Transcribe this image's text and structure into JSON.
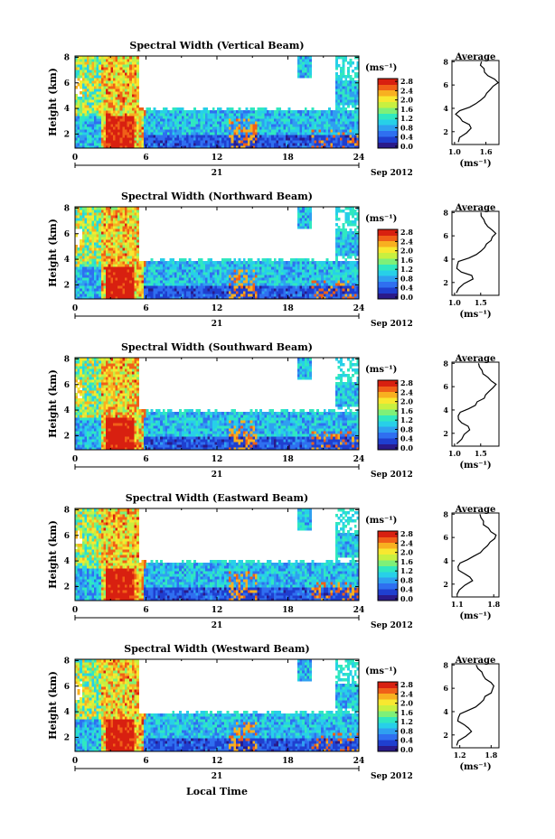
{
  "footer_label": "Local Time",
  "palette": [
    "#2a1a8a",
    "#1f3fcf",
    "#2f6ff0",
    "#2fa0f0",
    "#27d0e8",
    "#30e8c0",
    "#7ef078",
    "#c8f040",
    "#f8e830",
    "#f8b020",
    "#f06018",
    "#d82010"
  ],
  "chart_data": [
    {
      "type": "heatmap",
      "title": "Spectral Width (Vertical Beam)",
      "ylabel": "Height (km)",
      "yticks": [
        "2",
        "4",
        "6",
        "8"
      ],
      "ylim": [
        0.9,
        8.1
      ],
      "xticks": [
        "0",
        "6",
        "12",
        "18",
        "24"
      ],
      "xticks_minor": [
        "3",
        "9",
        "15",
        "21"
      ],
      "xlim": [
        0,
        24
      ],
      "date_day": "21",
      "date_month": "Sep 2012",
      "colorbar": {
        "unit": "(ms⁻¹)",
        "ticks": [
          "2.8",
          "2.4",
          "2.0",
          "1.6",
          "1.2",
          "0.8",
          "0.4",
          "0.0"
        ],
        "range": [
          0.0,
          3.0
        ]
      },
      "profile": {
        "title": "Average",
        "xlabel": "(ms⁻¹)",
        "xticks": [
          "1.0",
          "1.6"
        ],
        "xlim": [
          0.95,
          1.85
        ],
        "yticks": [
          "2",
          "4",
          "6",
          "8"
        ],
        "height": [
          1.1,
          1.5,
          1.9,
          2.3,
          2.6,
          2.9,
          3.2,
          3.5,
          3.8,
          4.1,
          4.4,
          4.7,
          5.0,
          5.3,
          5.6,
          5.9,
          6.2,
          6.5,
          6.8,
          7.1,
          7.4,
          7.7,
          8.0
        ],
        "width": [
          1.05,
          1.12,
          1.22,
          1.32,
          1.28,
          1.16,
          1.08,
          1.05,
          1.12,
          1.28,
          1.42,
          1.5,
          1.56,
          1.62,
          1.7,
          1.76,
          1.82,
          1.74,
          1.66,
          1.6,
          1.55,
          1.52,
          1.5
        ]
      }
    },
    {
      "type": "heatmap",
      "title": "Spectral Width (Northward Beam)",
      "ylabel": "Height (km)",
      "yticks": [
        "2",
        "4",
        "6",
        "8"
      ],
      "ylim": [
        0.9,
        8.1
      ],
      "xticks": [
        "0",
        "6",
        "12",
        "18",
        "24"
      ],
      "xticks_minor": [
        "3",
        "9",
        "15",
        "21"
      ],
      "xlim": [
        0,
        24
      ],
      "date_day": "21",
      "date_month": "Sep 2012",
      "colorbar": {
        "unit": "(ms⁻¹)",
        "ticks": [
          "2.8",
          "2.4",
          "2.0",
          "1.6",
          "1.2",
          "0.8",
          "0.4",
          "0.0"
        ],
        "range": [
          0.0,
          3.0
        ]
      },
      "profile": {
        "title": "Average",
        "xlabel": "(ms⁻¹)",
        "xticks": [
          "1.0",
          "1.5"
        ],
        "xlim": [
          0.95,
          1.85
        ],
        "yticks": [
          "2",
          "4",
          "6",
          "8"
        ],
        "height": [
          1.1,
          1.5,
          1.9,
          2.3,
          2.6,
          2.9,
          3.2,
          3.5,
          3.8,
          4.1,
          4.4,
          4.7,
          5.0,
          5.3,
          5.6,
          5.9,
          6.2,
          6.5,
          6.8,
          7.1,
          7.4,
          7.7,
          8.0
        ],
        "width": [
          1.04,
          1.1,
          1.2,
          1.34,
          1.3,
          1.15,
          1.07,
          1.04,
          1.1,
          1.26,
          1.4,
          1.48,
          1.55,
          1.62,
          1.68,
          1.74,
          1.8,
          1.72,
          1.64,
          1.58,
          1.54,
          1.5,
          1.48
        ]
      }
    },
    {
      "type": "heatmap",
      "title": "Spectral Width (Southward Beam)",
      "ylabel": "Height (km)",
      "yticks": [
        "2",
        "4",
        "6",
        "8"
      ],
      "ylim": [
        0.9,
        8.1
      ],
      "xticks": [
        "0",
        "6",
        "12",
        "18",
        "24"
      ],
      "xticks_minor": [
        "3",
        "9",
        "15",
        "21"
      ],
      "xlim": [
        0,
        24
      ],
      "date_day": "21",
      "date_month": "Sep 2012",
      "colorbar": {
        "unit": "(ms⁻¹)",
        "ticks": [
          "2.8",
          "2.4",
          "2.0",
          "1.6",
          "1.2",
          "0.8",
          "0.4",
          "0.0"
        ],
        "range": [
          0.0,
          3.0
        ]
      },
      "profile": {
        "title": "Average",
        "xlabel": "(ms⁻¹)",
        "xticks": [
          "1.0",
          "1.5"
        ],
        "xlim": [
          0.95,
          1.85
        ],
        "yticks": [
          "2",
          "4",
          "6",
          "8"
        ],
        "height": [
          1.1,
          1.5,
          1.9,
          2.3,
          2.6,
          2.9,
          3.2,
          3.5,
          3.8,
          4.1,
          4.4,
          4.7,
          5.0,
          5.3,
          5.6,
          5.9,
          6.2,
          6.5,
          6.8,
          7.1,
          7.4,
          7.7,
          8.0
        ],
        "width": [
          1.05,
          1.12,
          1.2,
          1.3,
          1.26,
          1.14,
          1.07,
          1.05,
          1.1,
          1.24,
          1.38,
          1.46,
          1.54,
          1.6,
          1.68,
          1.75,
          1.78,
          1.7,
          1.62,
          1.56,
          1.52,
          1.48,
          1.46
        ]
      }
    },
    {
      "type": "heatmap",
      "title": "Spectral Width (Eastward Beam)",
      "ylabel": "Height (km)",
      "yticks": [
        "2",
        "4",
        "6",
        "8"
      ],
      "ylim": [
        0.9,
        8.1
      ],
      "xticks": [
        "0",
        "6",
        "12",
        "18",
        "24"
      ],
      "xticks_minor": [
        "3",
        "9",
        "15",
        "21"
      ],
      "xlim": [
        0,
        24
      ],
      "date_day": "21",
      "date_month": "Sep 2012",
      "colorbar": {
        "unit": "(ms⁻¹)",
        "ticks": [
          "2.8",
          "2.4",
          "2.0",
          "1.6",
          "1.2",
          "0.8",
          "0.4",
          "0.0"
        ],
        "range": [
          0.0,
          3.0
        ]
      },
      "profile": {
        "title": "Average",
        "xlabel": "(ms⁻¹)",
        "xticks": [
          "1.1",
          "1.8"
        ],
        "xlim": [
          1.0,
          1.9
        ],
        "yticks": [
          "2",
          "4",
          "6",
          "8"
        ],
        "height": [
          1.1,
          1.5,
          1.9,
          2.3,
          2.6,
          2.9,
          3.2,
          3.5,
          3.8,
          4.1,
          4.4,
          4.7,
          5.0,
          5.3,
          5.6,
          5.9,
          6.2,
          6.5,
          6.8,
          7.1,
          7.4,
          7.7,
          8.0
        ],
        "width": [
          1.1,
          1.16,
          1.26,
          1.38,
          1.34,
          1.22,
          1.14,
          1.11,
          1.16,
          1.3,
          1.44,
          1.52,
          1.6,
          1.66,
          1.74,
          1.8,
          1.84,
          1.76,
          1.68,
          1.62,
          1.58,
          1.55,
          1.52
        ]
      }
    },
    {
      "type": "heatmap",
      "title": "Spectral Width (Westward Beam)",
      "ylabel": "Height (km)",
      "yticks": [
        "2",
        "4",
        "6",
        "8"
      ],
      "ylim": [
        0.9,
        8.1
      ],
      "xticks": [
        "0",
        "6",
        "12",
        "18",
        "24"
      ],
      "xticks_minor": [
        "3",
        "9",
        "15",
        "21"
      ],
      "xlim": [
        0,
        24
      ],
      "date_day": "21",
      "date_month": "Sep 2012",
      "colorbar": {
        "unit": "(ms⁻¹)",
        "ticks": [
          "2.8",
          "2.4",
          "2.0",
          "1.6",
          "1.2",
          "0.8",
          "0.4",
          "0.0"
        ],
        "range": [
          0.0,
          3.0
        ]
      },
      "profile": {
        "title": "Average",
        "xlabel": "(ms⁻¹)",
        "xticks": [
          "1.2",
          "1.8"
        ],
        "xlim": [
          1.05,
          1.95
        ],
        "yticks": [
          "2",
          "4",
          "6",
          "8"
        ],
        "height": [
          1.1,
          1.5,
          1.9,
          2.3,
          2.6,
          2.9,
          3.2,
          3.5,
          3.8,
          4.1,
          4.4,
          4.7,
          5.0,
          5.3,
          5.6,
          5.9,
          6.2,
          6.5,
          6.8,
          7.1,
          7.4,
          7.7,
          8.0
        ],
        "width": [
          1.12,
          1.18,
          1.3,
          1.42,
          1.38,
          1.26,
          1.18,
          1.15,
          1.2,
          1.34,
          1.48,
          1.56,
          1.64,
          1.7,
          1.78,
          1.84,
          1.86,
          1.78,
          1.7,
          1.64,
          1.6,
          1.56,
          1.54
        ]
      }
    }
  ]
}
